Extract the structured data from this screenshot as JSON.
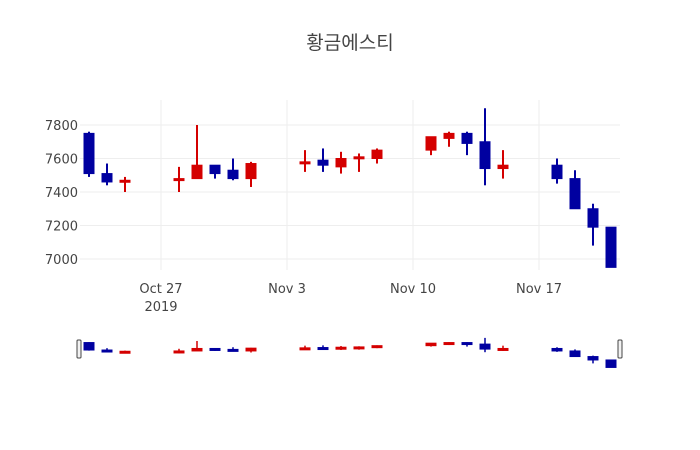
{
  "title": "황금에스티",
  "colors": {
    "increasing": "#d40000",
    "decreasing": "#0000a0",
    "grid": "#eeeeee",
    "text": "#444444"
  },
  "chart_data": {
    "type": "candlestick",
    "title": "황금에스티",
    "xlabel": "",
    "ylabel": "",
    "ylim": [
      6950,
      7950
    ],
    "yticks": [
      7000,
      7200,
      7400,
      7600,
      7800
    ],
    "xticks": [
      {
        "label": "Oct 27",
        "sublabel": "2019",
        "date": "2019-10-27"
      },
      {
        "label": "Nov 3",
        "sublabel": "",
        "date": "2019-11-03"
      },
      {
        "label": "Nov 10",
        "sublabel": "",
        "date": "2019-11-10"
      },
      {
        "label": "Nov 17",
        "sublabel": "",
        "date": "2019-11-17"
      }
    ],
    "xrange": [
      "2019-10-22 12:00",
      "2019-11-21 12:00"
    ],
    "grid": true,
    "legend": false,
    "rangeslider": true,
    "candles": [
      {
        "date": "2019-10-23",
        "open": 7750,
        "high": 7760,
        "low": 7490,
        "close": 7510
      },
      {
        "date": "2019-10-24",
        "open": 7510,
        "high": 7570,
        "low": 7440,
        "close": 7460
      },
      {
        "date": "2019-10-25",
        "open": 7460,
        "high": 7490,
        "low": 7400,
        "close": 7470
      },
      {
        "date": "2019-10-28",
        "open": 7470,
        "high": 7550,
        "low": 7400,
        "close": 7480
      },
      {
        "date": "2019-10-29",
        "open": 7480,
        "high": 7800,
        "low": 7480,
        "close": 7560
      },
      {
        "date": "2019-10-30",
        "open": 7560,
        "high": 7560,
        "low": 7480,
        "close": 7510
      },
      {
        "date": "2019-10-31",
        "open": 7530,
        "high": 7600,
        "low": 7470,
        "close": 7480
      },
      {
        "date": "2019-11-01",
        "open": 7480,
        "high": 7580,
        "low": 7430,
        "close": 7570
      },
      {
        "date": "2019-11-04",
        "open": 7570,
        "high": 7650,
        "low": 7520,
        "close": 7580
      },
      {
        "date": "2019-11-05",
        "open": 7590,
        "high": 7660,
        "low": 7520,
        "close": 7560
      },
      {
        "date": "2019-11-06",
        "open": 7550,
        "high": 7640,
        "low": 7510,
        "close": 7600
      },
      {
        "date": "2019-11-07",
        "open": 7600,
        "high": 7630,
        "low": 7520,
        "close": 7610
      },
      {
        "date": "2019-11-08",
        "open": 7600,
        "high": 7660,
        "low": 7570,
        "close": 7650
      },
      {
        "date": "2019-11-11",
        "open": 7650,
        "high": 7730,
        "low": 7620,
        "close": 7730
      },
      {
        "date": "2019-11-12",
        "open": 7720,
        "high": 7760,
        "low": 7670,
        "close": 7750
      },
      {
        "date": "2019-11-13",
        "open": 7750,
        "high": 7760,
        "low": 7620,
        "close": 7690
      },
      {
        "date": "2019-11-14",
        "open": 7700,
        "high": 7900,
        "low": 7440,
        "close": 7540
      },
      {
        "date": "2019-11-15",
        "open": 7540,
        "high": 7650,
        "low": 7480,
        "close": 7560
      },
      {
        "date": "2019-11-18",
        "open": 7560,
        "high": 7600,
        "low": 7450,
        "close": 7480
      },
      {
        "date": "2019-11-19",
        "open": 7480,
        "high": 7530,
        "low": 7300,
        "close": 7300
      },
      {
        "date": "2019-11-20",
        "open": 7300,
        "high": 7330,
        "low": 7080,
        "close": 7190
      },
      {
        "date": "2019-11-21",
        "open": 7190,
        "high": 7190,
        "low": 6950,
        "close": 6950
      }
    ]
  }
}
